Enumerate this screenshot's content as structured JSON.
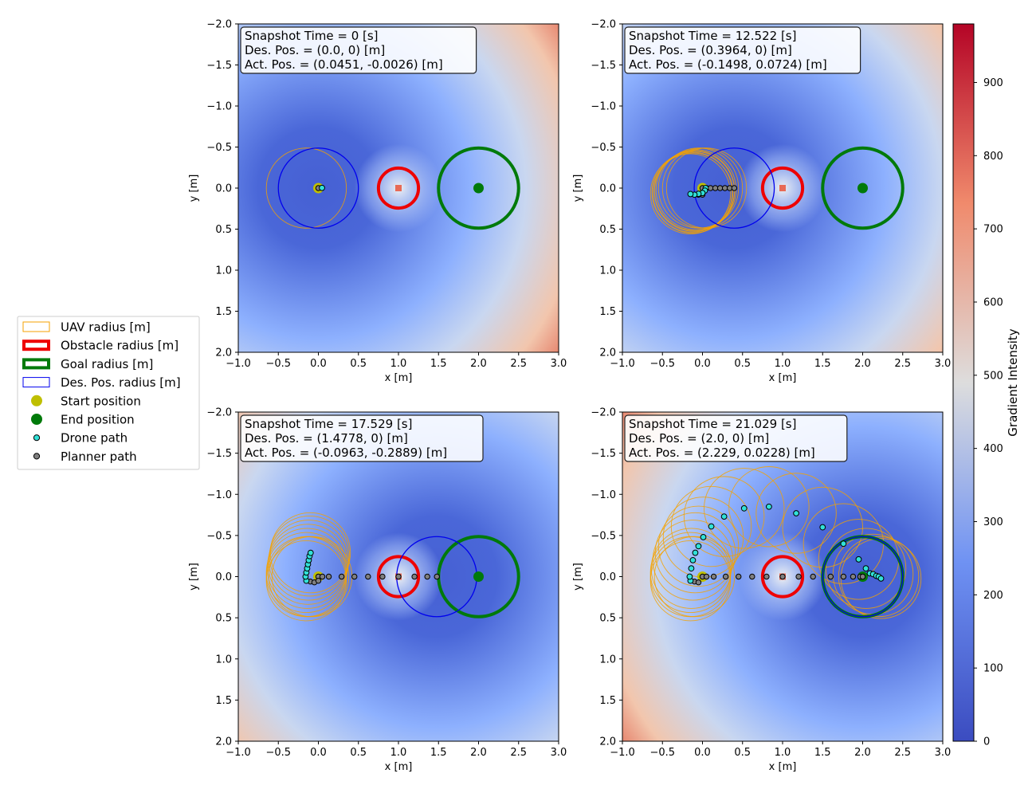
{
  "colors": {
    "uav": "#f5a200",
    "obstacle": "#ee0000",
    "goal": "#007a0a",
    "despos": "#0000ee",
    "start": "#bfbf00",
    "end": "#007a0a",
    "drone": "#31e1d8",
    "planner": "#808080",
    "cmap_low": "#3b4cc0",
    "cmap_mid": "#dddddd",
    "cmap_high": "#b40426"
  },
  "chart_data": {
    "type": "heatmap",
    "xlabel": "x [m]",
    "ylabel": "y [m]",
    "xlim": [
      -1.0,
      3.0
    ],
    "ylim": [
      2.0,
      -2.0
    ],
    "xticks": [
      "−1.0",
      "−0.5",
      "0.0",
      "0.5",
      "1.0",
      "1.5",
      "2.0",
      "2.5",
      "3.0"
    ],
    "yticks": [
      "−2.0",
      "−1.5",
      "−1.0",
      "−0.5",
      "0.0",
      "0.5",
      "1.0",
      "1.5",
      "2.0"
    ],
    "legend": {
      "placement": "left",
      "items": [
        {
          "key": "uav",
          "label": "UAV radius [m]"
        },
        {
          "key": "obstacle",
          "label": "Obstacle radius [m]"
        },
        {
          "key": "goal",
          "label": "Goal radius [m]"
        },
        {
          "key": "despos",
          "label": "Des. Pos. radius [m]"
        },
        {
          "key": "start",
          "label": "Start position"
        },
        {
          "key": "end",
          "label": "End position"
        },
        {
          "key": "drone",
          "label": "Drone path"
        },
        {
          "key": "planner",
          "label": "Planner path"
        }
      ]
    },
    "colorbar": {
      "label": "Gradient Intensity",
      "min": 0,
      "max": 980,
      "ticks": [
        "0",
        "100",
        "200",
        "300",
        "400",
        "500",
        "600",
        "700",
        "800",
        "900"
      ]
    },
    "obstacle": {
      "x": 1.0,
      "y": 0.0,
      "radius": 0.25
    },
    "goal": {
      "x": 2.0,
      "y": 0.0,
      "radius": 0.5
    },
    "start": {
      "x": 0.0,
      "y": 0.0
    },
    "uav_radius": 0.5,
    "despos_radius": 0.5,
    "panels": [
      {
        "info": [
          "Snapshot Time = 0 [s]",
          "Des. Pos. = (0.0, 0) [m]",
          "Act.  Pos. = (0.0451, -0.0026) [m]"
        ],
        "des_pos": [
          0.0,
          0.0
        ],
        "drone_path": [
          [
            0.0451,
            -0.0026
          ]
        ],
        "planner_path": [
          [
            0.0,
            0.0
          ]
        ],
        "uav_positions": [
          [
            -0.15,
            0.0
          ]
        ]
      },
      {
        "info": [
          "Snapshot Time = 12.522 [s]",
          "Des. Pos. = (0.3964, 0) [m]",
          "Act.  Pos. = (-0.1498, 0.0724) [m]"
        ],
        "des_pos": [
          0.3964,
          0.0
        ],
        "drone_path": [
          [
            0.04,
            0.0
          ],
          [
            0.03,
            0.03
          ],
          [
            0.0,
            0.06
          ],
          [
            -0.05,
            0.07
          ],
          [
            -0.1,
            0.08
          ],
          [
            -0.1498,
            0.0724
          ]
        ],
        "planner_path": [
          [
            0.0,
            0.0
          ],
          [
            0.05,
            0.0
          ],
          [
            0.1,
            0.0
          ],
          [
            0.16,
            0.0
          ],
          [
            0.22,
            0.0
          ],
          [
            0.28,
            0.0
          ],
          [
            0.34,
            0.0
          ],
          [
            0.3964,
            0.0
          ],
          [
            0.0,
            0.08
          ],
          [
            -0.05,
            0.08
          ]
        ],
        "uav_positions": [
          [
            -0.05,
            0.0
          ],
          [
            -0.08,
            0.02
          ],
          [
            -0.1,
            0.04
          ],
          [
            -0.12,
            0.06
          ],
          [
            -0.15,
            0.07
          ],
          [
            -0.1,
            0.03
          ],
          [
            0.0,
            0.0
          ],
          [
            0.05,
            0.0
          ],
          [
            -0.13,
            0.05
          ]
        ]
      },
      {
        "info": [
          "Snapshot Time = 17.529 [s]",
          "Des. Pos. = (1.4778, 0) [m]",
          "Act.  Pos. = (-0.0963, -0.2889) [m]"
        ],
        "des_pos": [
          1.4778,
          0.0
        ],
        "drone_path": [
          [
            -0.15,
            0.05
          ],
          [
            -0.16,
            0.0
          ],
          [
            -0.15,
            -0.05
          ],
          [
            -0.14,
            -0.1
          ],
          [
            -0.13,
            -0.15
          ],
          [
            -0.12,
            -0.2
          ],
          [
            -0.11,
            -0.25
          ],
          [
            -0.0963,
            -0.2889
          ]
        ],
        "planner_path": [
          [
            0.0,
            0.0
          ],
          [
            0.05,
            0.0
          ],
          [
            0.13,
            0.0
          ],
          [
            0.29,
            0.0
          ],
          [
            0.45,
            0.0
          ],
          [
            0.62,
            0.0
          ],
          [
            0.8,
            0.0
          ],
          [
            1.0,
            0.0
          ],
          [
            1.2,
            0.0
          ],
          [
            1.36,
            0.0
          ],
          [
            1.48,
            0.0
          ],
          [
            -0.1,
            0.06
          ],
          [
            -0.05,
            0.07
          ],
          [
            0.0,
            0.05
          ]
        ],
        "uav_positions": [
          [
            -0.15,
            0.0
          ],
          [
            -0.15,
            -0.05
          ],
          [
            -0.14,
            -0.1
          ],
          [
            -0.13,
            -0.15
          ],
          [
            -0.12,
            -0.2
          ],
          [
            -0.11,
            -0.25
          ],
          [
            -0.1,
            -0.29
          ],
          [
            -0.15,
            0.05
          ],
          [
            -0.12,
            0.0
          ],
          [
            -0.08,
            0.0
          ]
        ]
      },
      {
        "info": [
          "Snapshot Time = 21.029 [s]",
          "Des. Pos. = (2.0, 0) [m]",
          "Act.  Pos. = (2.229, 0.0228) [m]"
        ],
        "des_pos": [
          2.0,
          0.0
        ],
        "drone_path": [
          [
            -0.15,
            0.05
          ],
          [
            -0.16,
            0.0
          ],
          [
            -0.14,
            -0.1
          ],
          [
            -0.12,
            -0.2
          ],
          [
            -0.09,
            -0.29
          ],
          [
            -0.05,
            -0.37
          ],
          [
            0.01,
            -0.48
          ],
          [
            0.11,
            -0.61
          ],
          [
            0.27,
            -0.73
          ],
          [
            0.52,
            -0.83
          ],
          [
            0.83,
            -0.85
          ],
          [
            1.17,
            -0.77
          ],
          [
            1.5,
            -0.6
          ],
          [
            1.76,
            -0.4
          ],
          [
            1.95,
            -0.21
          ],
          [
            2.04,
            -0.1
          ],
          [
            2.09,
            -0.04
          ],
          [
            2.13,
            -0.03
          ],
          [
            2.17,
            -0.01
          ],
          [
            2.2,
            0.0
          ],
          [
            2.229,
            0.0228
          ]
        ],
        "planner_path": [
          [
            0.0,
            0.0
          ],
          [
            0.05,
            0.0
          ],
          [
            0.14,
            0.0
          ],
          [
            0.29,
            0.0
          ],
          [
            0.45,
            0.0
          ],
          [
            0.62,
            0.0
          ],
          [
            0.8,
            0.0
          ],
          [
            1.0,
            0.0
          ],
          [
            1.2,
            0.0
          ],
          [
            1.38,
            0.0
          ],
          [
            1.6,
            0.0
          ],
          [
            1.76,
            0.0
          ],
          [
            1.88,
            0.0
          ],
          [
            1.97,
            0.0
          ],
          [
            2.0,
            0.0
          ],
          [
            -0.1,
            0.06
          ],
          [
            -0.05,
            0.07
          ]
        ],
        "uav_positions": [
          [
            -0.15,
            0.0
          ],
          [
            -0.15,
            -0.05
          ],
          [
            -0.14,
            -0.1
          ],
          [
            -0.12,
            -0.2
          ],
          [
            -0.09,
            -0.29
          ],
          [
            -0.05,
            -0.37
          ],
          [
            0.01,
            -0.48
          ],
          [
            0.11,
            -0.61
          ],
          [
            0.27,
            -0.73
          ],
          [
            0.52,
            -0.83
          ],
          [
            0.83,
            -0.85
          ],
          [
            1.17,
            -0.77
          ],
          [
            1.5,
            -0.6
          ],
          [
            1.76,
            -0.4
          ],
          [
            1.95,
            -0.21
          ],
          [
            2.04,
            -0.1
          ],
          [
            2.13,
            -0.03
          ],
          [
            2.2,
            0.0
          ],
          [
            2.229,
            0.0228
          ],
          [
            -0.15,
            0.05
          ],
          [
            -0.1,
            0.0
          ]
        ]
      }
    ]
  }
}
